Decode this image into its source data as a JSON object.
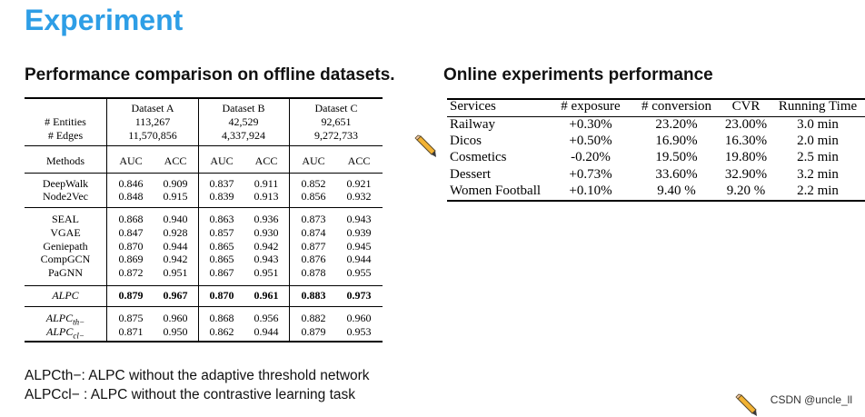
{
  "slide": {
    "title": "Experiment",
    "offline_heading": "Performance comparison on offline datasets.",
    "online_heading": "Online experiments performance",
    "notes": [
      "ALPCth−:  ALPC without the adaptive threshold network",
      "ALPCcl− :  ALPC without the contrastive learning task"
    ],
    "watermark": "CSDN @uncle_ll",
    "accent_color": "#2e9ee6",
    "icons": [
      "pencil-icon",
      "pencil-icon"
    ]
  },
  "offline_table": {
    "dataset_headers": [
      "Dataset A",
      "Dataset B",
      "Dataset C"
    ],
    "stat_labels": [
      "# Entities",
      "# Edges"
    ],
    "entities": [
      "113,267",
      "42,529",
      "92,651"
    ],
    "edges": [
      "11,570,856",
      "4,337,924",
      "9,272,733"
    ],
    "methods_label": "Methods",
    "metric_headers": [
      "AUC",
      "ACC",
      "AUC",
      "ACC",
      "AUC",
      "ACC"
    ],
    "group1": [
      {
        "method": "DeepWalk",
        "values": [
          "0.846",
          "0.909",
          "0.837",
          "0.911",
          "0.852",
          "0.921"
        ]
      },
      {
        "method": "Node2Vec",
        "values": [
          "0.848",
          "0.915",
          "0.839",
          "0.913",
          "0.856",
          "0.932"
        ]
      }
    ],
    "group2": [
      {
        "method": "SEAL",
        "values": [
          "0.868",
          "0.940",
          "0.863",
          "0.936",
          "0.873",
          "0.943"
        ]
      },
      {
        "method": "VGAE",
        "values": [
          "0.847",
          "0.928",
          "0.857",
          "0.930",
          "0.874",
          "0.939"
        ]
      },
      {
        "method": "Geniepath",
        "values": [
          "0.870",
          "0.944",
          "0.865",
          "0.942",
          "0.877",
          "0.945"
        ]
      },
      {
        "method": "CompGCN",
        "values": [
          "0.869",
          "0.942",
          "0.865",
          "0.943",
          "0.876",
          "0.944"
        ]
      },
      {
        "method": "PaGNN",
        "values": [
          "0.872",
          "0.951",
          "0.867",
          "0.951",
          "0.878",
          "0.955"
        ]
      }
    ],
    "alpc": {
      "method": "ALPC",
      "values": [
        "0.879",
        "0.967",
        "0.870",
        "0.961",
        "0.883",
        "0.973"
      ]
    },
    "ablations": [
      {
        "method": "ALPC",
        "sub": "th−",
        "values": [
          "0.875",
          "0.960",
          "0.868",
          "0.956",
          "0.882",
          "0.960"
        ]
      },
      {
        "method": "ALPC",
        "sub": "cl−",
        "values": [
          "0.871",
          "0.950",
          "0.862",
          "0.944",
          "0.879",
          "0.953"
        ]
      }
    ]
  },
  "online_table": {
    "headers": [
      "Services",
      "# exposure",
      "# conversion",
      "CVR",
      "Running Time"
    ],
    "rows": [
      [
        "Railway",
        "+0.30%",
        "23.20%",
        "23.00%",
        "3.0 min"
      ],
      [
        "Dicos",
        "+0.50%",
        "16.90%",
        "16.30%",
        "2.0 min"
      ],
      [
        "Cosmetics",
        "-0.20%",
        "19.50%",
        "19.80%",
        "2.5 min"
      ],
      [
        "Dessert",
        "+0.73%",
        "33.60%",
        "32.90%",
        "3.2 min"
      ],
      [
        "Women Football",
        "+0.10%",
        "9.40 %",
        "9.20 %",
        "2.2 min"
      ]
    ]
  }
}
